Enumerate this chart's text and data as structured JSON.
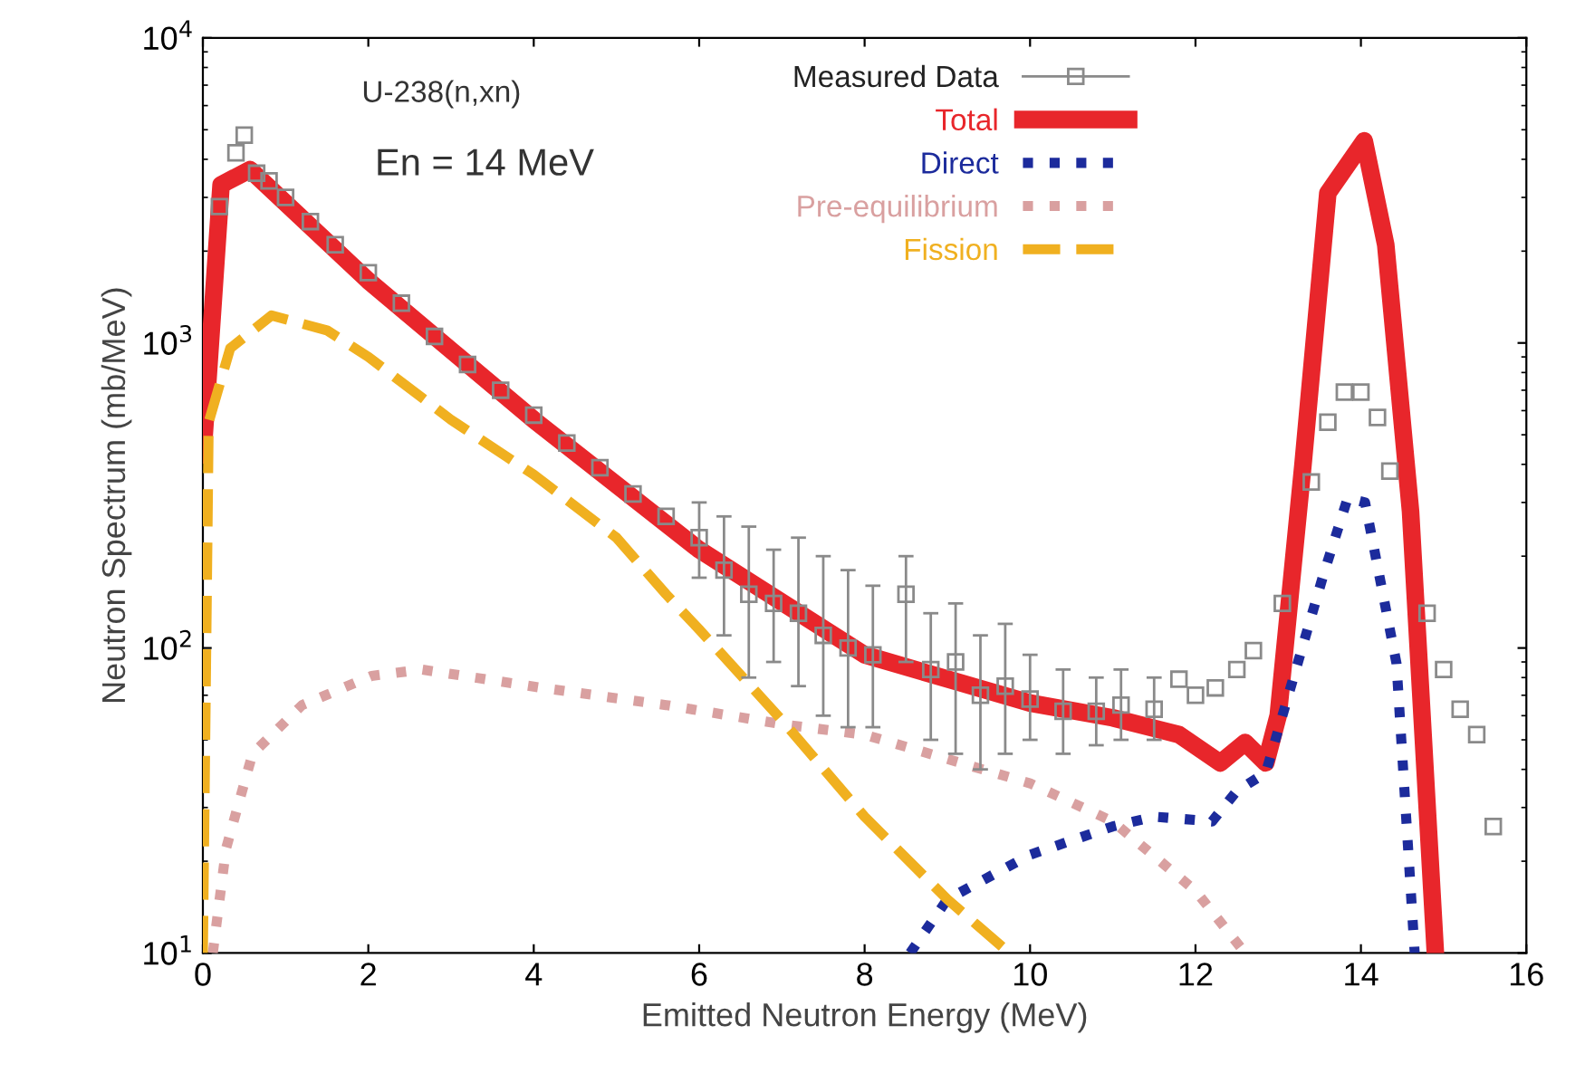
{
  "chart_data": {
    "type": "line",
    "xlabel": "Emitted Neutron Energy (MeV)",
    "ylabel": "Neutron Spectrum (mb/MeV)",
    "annotations": [
      "U-238(n,xn)",
      "En = 14 MeV"
    ],
    "xlim": [
      0,
      16
    ],
    "xticks": [
      0,
      2,
      4,
      6,
      8,
      10,
      12,
      14,
      16
    ],
    "ylim": [
      10,
      10000
    ],
    "log": "y",
    "yticks": [
      {
        "value": 10,
        "label": "10$^{1}$"
      },
      {
        "value": 100,
        "label": "10$^{2}$"
      },
      {
        "value": 1000,
        "label": "10$^{3}$"
      },
      {
        "value": 10000,
        "label": "10$^{4}$"
      }
    ],
    "grid": false,
    "legend": "top right",
    "series": [
      {
        "name": "Measured Data",
        "type": "scatter",
        "color": "#8a8a8a",
        "marker": "square",
        "x": [
          0.2,
          0.4,
          0.5,
          0.65,
          0.8,
          1.0,
          1.3,
          1.6,
          2.0,
          2.4,
          2.8,
          3.2,
          3.6,
          4.0,
          4.4,
          4.8,
          5.2,
          5.6,
          6.0,
          6.3,
          6.6,
          6.9,
          7.2,
          7.5,
          7.8,
          8.1,
          8.5,
          8.8,
          9.1,
          9.4,
          9.7,
          10.0,
          10.4,
          10.8,
          11.1,
          11.5,
          11.8,
          12.0,
          12.24,
          12.5,
          12.7,
          13.05,
          13.4,
          13.6,
          13.8,
          14.0,
          14.2,
          14.35,
          14.8,
          15.0,
          15.2,
          15.4,
          15.6
        ],
        "values": [
          2800,
          4200,
          4800,
          3600,
          3400,
          3000,
          2500,
          2100,
          1700,
          1350,
          1050,
          850,
          700,
          580,
          470,
          390,
          320,
          270,
          230,
          180,
          150,
          140,
          130,
          110,
          100,
          95,
          150,
          85,
          90,
          70,
          75,
          68,
          62,
          62,
          65,
          63,
          79,
          70,
          74,
          85,
          98,
          140,
          350,
          550,
          690,
          690,
          570,
          380,
          130,
          85,
          63,
          52,
          26
        ],
        "errors": [
          null,
          null,
          null,
          null,
          null,
          null,
          null,
          null,
          null,
          null,
          null,
          null,
          null,
          null,
          null,
          null,
          null,
          null,
          [
            170,
            300
          ],
          [
            110,
            270
          ],
          [
            80,
            250
          ],
          [
            90,
            210
          ],
          [
            75,
            230
          ],
          [
            60,
            200
          ],
          [
            55,
            180
          ],
          [
            55,
            160
          ],
          [
            90,
            200
          ],
          [
            50,
            130
          ],
          [
            45,
            140
          ],
          [
            40,
            110
          ],
          [
            45,
            120
          ],
          [
            50,
            95
          ],
          [
            45,
            85
          ],
          [
            48,
            80
          ],
          [
            50,
            85
          ],
          [
            50,
            80
          ],
          null,
          null,
          null,
          null,
          null,
          null,
          null,
          null,
          null,
          null,
          null,
          null,
          null,
          null,
          null,
          null,
          null
        ]
      },
      {
        "name": "Total",
        "color": "#e8262b",
        "line_style": "solid",
        "x": [
          0,
          0.22,
          0.57,
          2,
          4,
          6,
          8,
          10,
          11,
          11.8,
          12.3,
          12.6,
          12.85,
          13.0,
          13.3,
          13.6,
          14.04,
          14.3,
          14.6,
          14.9
        ],
        "values": [
          430,
          3300,
          3700,
          1600,
          560,
          210,
          95,
          66,
          59,
          52,
          42,
          49,
          42,
          60,
          400,
          3100,
          4600,
          2100,
          280,
          10
        ]
      },
      {
        "name": "Direct",
        "color": "#1c2b9c",
        "line_style": "dotted",
        "x": [
          8.55,
          9,
          10,
          11,
          11.5,
          12.2,
          12.5,
          12.85,
          13.55,
          13.84,
          14.05,
          14.43,
          14.65
        ],
        "values": [
          10,
          15,
          21,
          26,
          28,
          27,
          34,
          39,
          175,
          310,
          300,
          89,
          10
        ]
      },
      {
        "name": "Pre-equilibrium",
        "color": "#d9a0a0",
        "line_style": "dotted",
        "x": [
          0.12,
          0.28,
          0.6,
          1.2,
          2.04,
          2.65,
          4.1,
          5.6,
          7.05,
          8,
          10,
          11,
          12,
          12.6
        ],
        "values": [
          10,
          22,
          45,
          65,
          81,
          85,
          74,
          65,
          56,
          52,
          36,
          27,
          16,
          10
        ]
      },
      {
        "name": "Fission",
        "color": "#f0b020",
        "line_style": "dashed",
        "x": [
          0,
          0.07,
          0.33,
          0.83,
          1.5,
          2,
          3,
          4,
          5,
          5.6,
          6,
          7,
          8,
          9,
          9.75
        ],
        "values": [
          10,
          550,
          960,
          1230,
          1100,
          900,
          560,
          370,
          230,
          150,
          115,
          58,
          28,
          15,
          10
        ]
      }
    ]
  }
}
